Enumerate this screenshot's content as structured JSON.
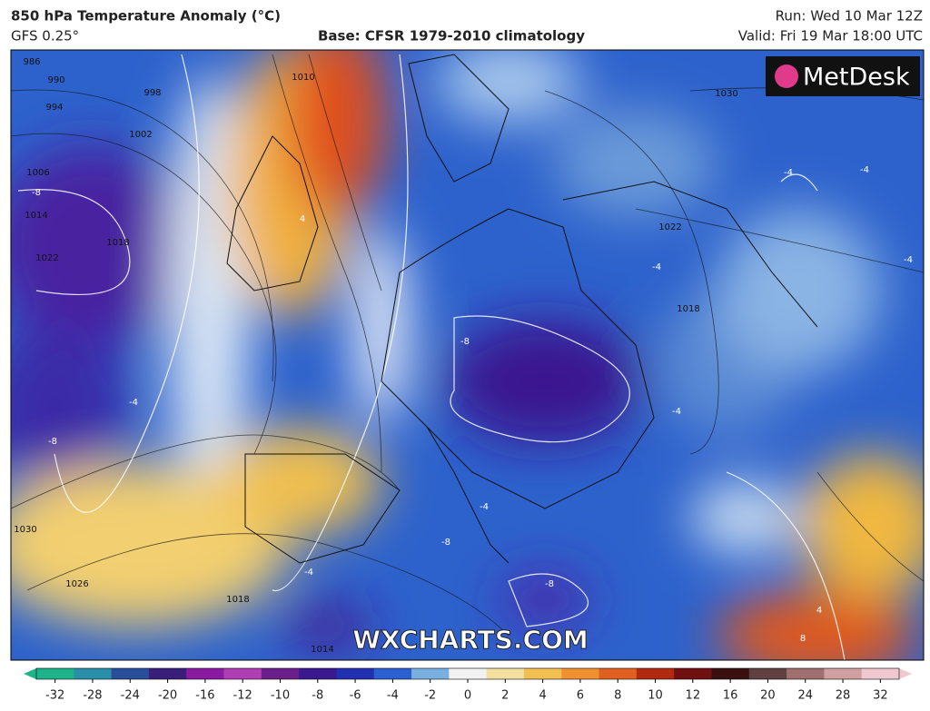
{
  "header": {
    "title": "850 hPa Temperature Anomaly (°C)",
    "model": "GFS 0.25°",
    "base": "Base: CFSR 1979-2010 climatology",
    "run": "Run: Wed 10 Mar 12Z",
    "valid": "Valid: Fri 19 Mar 18:00 UTC"
  },
  "logo": "MetDesk",
  "watermark": "WXCHARTS.COM",
  "contour_labels": [
    "986",
    "990",
    "994",
    "998",
    "1002",
    "1006",
    "1010",
    "1014",
    "1018",
    "1022",
    "1026",
    "1030",
    "1018",
    "1014",
    "1030",
    "1022",
    "1018",
    "-8",
    "-4",
    "-8",
    "-8",
    "-4",
    "-4",
    "-8",
    "-4",
    "-8",
    "-4",
    "-4",
    "-4",
    "4",
    "-4",
    "8",
    "4"
  ],
  "colorbar": {
    "ticks": [
      -32,
      -28,
      -24,
      -20,
      -16,
      -12,
      -10,
      -8,
      -6,
      -4,
      -2,
      0,
      2,
      4,
      6,
      8,
      10,
      12,
      16,
      20,
      24,
      28,
      32
    ],
    "colors": [
      "#1fb38a",
      "#2a8fa8",
      "#2a4f9a",
      "#3a1f7a",
      "#8a1aa0",
      "#b03fb5",
      "#6a1f8a",
      "#3a1890",
      "#2030b0",
      "#2a60d0",
      "#7ab0e0",
      "#f2f2f2",
      "#f3e0a0",
      "#f2c050",
      "#f09030",
      "#e06020",
      "#b02a10",
      "#701010",
      "#3a1010",
      "#604040",
      "#a07070",
      "#d0a0a0",
      "#f0c8d0"
    ]
  }
}
